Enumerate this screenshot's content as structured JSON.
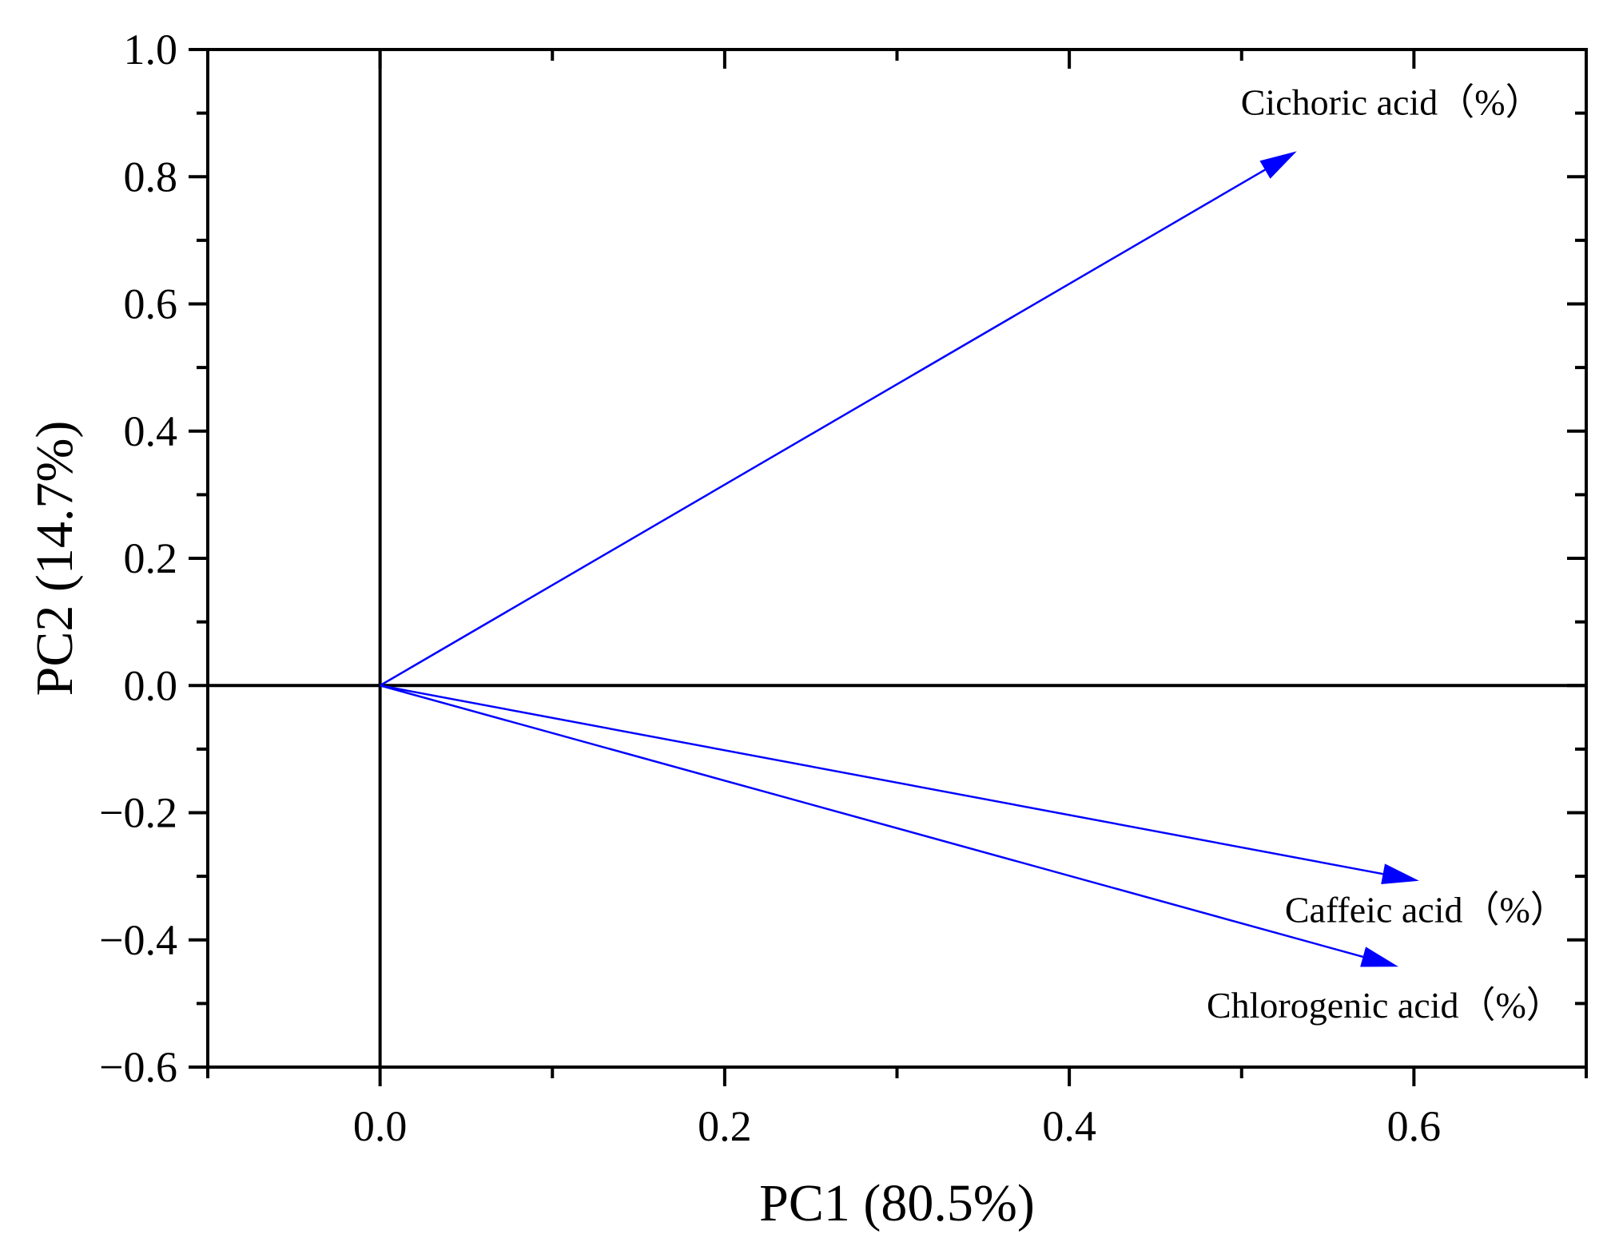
{
  "chart_data": {
    "type": "biplot",
    "title": "",
    "xlabel": "PC1 (80.5%)",
    "ylabel": "PC2 (14.7%)",
    "xlim": [
      -0.1,
      0.7
    ],
    "ylim": [
      -0.6,
      1.0
    ],
    "x_ticks": [
      {
        "value": 0.0,
        "label": "0.0"
      },
      {
        "value": 0.2,
        "label": "0.2"
      },
      {
        "value": 0.4,
        "label": "0.4"
      },
      {
        "value": 0.6,
        "label": "0.6"
      }
    ],
    "y_ticks": [
      {
        "value": 1.0,
        "label": "1.0"
      },
      {
        "value": 0.8,
        "label": "0.8"
      },
      {
        "value": 0.6,
        "label": "0.6"
      },
      {
        "value": 0.4,
        "label": "0.4"
      },
      {
        "value": 0.2,
        "label": "0.2"
      },
      {
        "value": 0.0,
        "label": "0.0"
      },
      {
        "value": -0.2,
        "label": "−0.2"
      },
      {
        "value": -0.4,
        "label": "−0.4"
      },
      {
        "value": -0.6,
        "label": "−0.6"
      }
    ],
    "x_minor_step": 0.1,
    "y_minor_step": 0.1,
    "reference_lines": {
      "x": 0.0,
      "y": 0.0
    },
    "grid": false,
    "series": [
      {
        "name": "Cichoric acid（%）",
        "origin": [
          0,
          0
        ],
        "x": 0.532,
        "y": 0.84
      },
      {
        "name": "Caffeic acid（%）",
        "origin": [
          0,
          0
        ],
        "x": 0.603,
        "y": -0.307
      },
      {
        "name": "Chlorogenic acid（%）",
        "origin": [
          0,
          0
        ],
        "x": 0.591,
        "y": -0.442
      }
    ],
    "colors": {
      "vector": "#0000ff",
      "axes": "#000000"
    }
  }
}
